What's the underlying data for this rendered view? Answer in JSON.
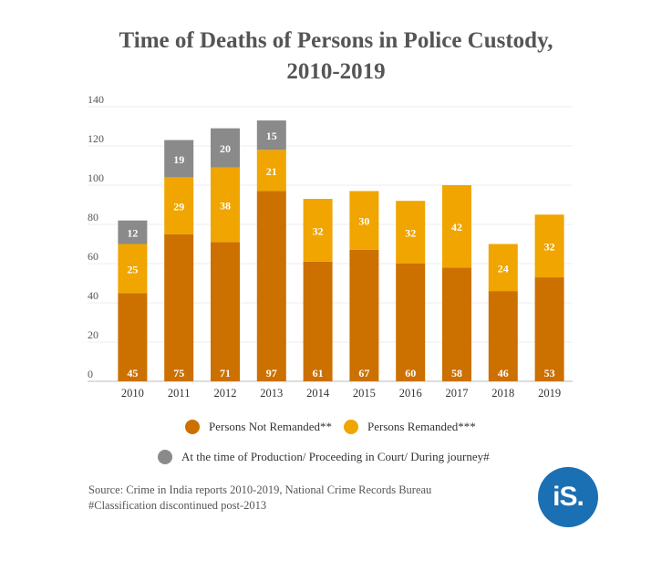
{
  "title_line1": "Time of Deaths of Persons in Police Custody,",
  "title_line2": "2010-2019",
  "chart_data": {
    "type": "bar",
    "stacked": true,
    "categories": [
      "2010",
      "2011",
      "2012",
      "2013",
      "2014",
      "2015",
      "2016",
      "2017",
      "2018",
      "2019"
    ],
    "series": [
      {
        "name": "Persons Not Remanded**",
        "color": "#cc7000",
        "values": [
          45,
          75,
          71,
          97,
          61,
          67,
          60,
          58,
          46,
          53
        ]
      },
      {
        "name": "Persons Remanded***",
        "color": "#f0a500",
        "values": [
          25,
          29,
          38,
          21,
          32,
          30,
          32,
          42,
          24,
          32
        ]
      },
      {
        "name": "At the time of Production/ Proceeding in Court/ During journey#",
        "color": "#8a8a8a",
        "values": [
          12,
          19,
          20,
          15,
          null,
          null,
          null,
          null,
          null,
          null
        ]
      }
    ],
    "yticks": [
      0,
      20,
      40,
      60,
      80,
      100,
      120,
      140
    ],
    "ylim": [
      0,
      140
    ],
    "grid": true,
    "legend_position": "bottom"
  },
  "legend": {
    "item1": "Persons Not Remanded**",
    "item2": "Persons Remanded***",
    "item3": "At the time of Production/ Proceeding in Court/ During journey#"
  },
  "colors": {
    "not_remanded": "#cc7000",
    "remanded": "#f0a500",
    "production": "#8a8a8a",
    "logo": "#1b6fb3"
  },
  "source_line1": "Source: Crime in India reports 2010-2019, National Crime Records Bureau",
  "source_line2": "#Classification discontinued post-2013",
  "logo_text": "iS."
}
